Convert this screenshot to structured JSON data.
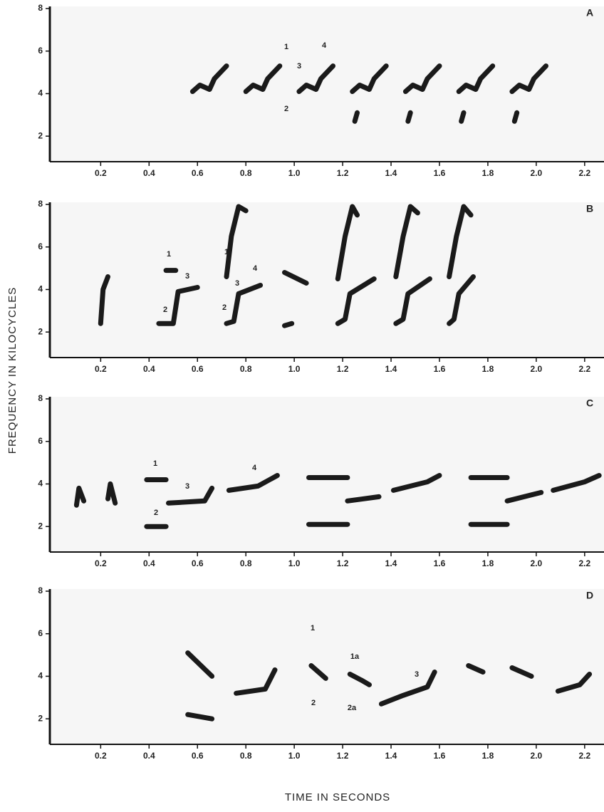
{
  "y_axis_label": "FREQUENCY IN KILOCYCLES",
  "x_axis_label": "TIME IN SECONDS",
  "chart_data": [
    {
      "type": "spectrogram",
      "title": "A",
      "color": "#1a1a1a",
      "xlim": [
        -0.01,
        2.28
      ],
      "ylim": [
        0.8,
        8.1
      ],
      "xticks": [
        0.2,
        0.4,
        0.6,
        0.8,
        {
          "value": 1,
          "label": "1.0"
        },
        1.2,
        1.4,
        1.6,
        1.8,
        {
          "value": 2,
          "label": "2.0"
        },
        2.2
      ],
      "yticks": [
        2,
        4,
        6,
        8
      ],
      "annotations": [
        "1",
        "4",
        "3",
        "2"
      ],
      "x": [
        0.58,
        0.61,
        0.65,
        0.67,
        0.72,
        null,
        0.8,
        0.83,
        0.87,
        0.89,
        0.94,
        null,
        1.02,
        1.05,
        1.09,
        1.11,
        1.16,
        null,
        1.24,
        1.27,
        1.31,
        1.33,
        1.38,
        null,
        1.46,
        1.49,
        1.53,
        1.55,
        1.6,
        null,
        1.68,
        1.71,
        1.75,
        1.77,
        1.82,
        null,
        1.9,
        1.93,
        1.97,
        1.99,
        2.04,
        null,
        1.25,
        1.26,
        null,
        1.47,
        1.48,
        null,
        1.69,
        1.7,
        null,
        1.91,
        1.92
      ],
      "values": [
        4.1,
        4.4,
        4.2,
        4.7,
        5.3,
        null,
        4.1,
        4.4,
        4.2,
        4.7,
        5.3,
        null,
        4.1,
        4.4,
        4.2,
        4.7,
        5.3,
        null,
        4.1,
        4.4,
        4.2,
        4.7,
        5.3,
        null,
        4.1,
        4.4,
        4.2,
        4.7,
        5.3,
        null,
        4.1,
        4.4,
        4.2,
        4.7,
        5.3,
        null,
        4.1,
        4.4,
        4.2,
        4.7,
        5.3,
        null,
        2.7,
        3.1,
        null,
        2.7,
        3.1,
        null,
        2.7,
        3.1,
        null,
        2.7,
        3.1
      ]
    },
    {
      "type": "spectrogram",
      "title": "B",
      "color": "#1a1a1a",
      "xlim": [
        -0.01,
        2.28
      ],
      "ylim": [
        0.8,
        8.1
      ],
      "xticks": [
        0.2,
        0.4,
        0.6,
        0.8,
        {
          "value": 1,
          "label": "1.0"
        },
        1.2,
        1.4,
        1.6,
        1.8,
        {
          "value": 2,
          "label": "2.0"
        },
        2.2
      ],
      "yticks": [
        2,
        4,
        6,
        8
      ],
      "annotations": [
        "1",
        "3",
        "2",
        "1",
        "3",
        "4",
        "2"
      ],
      "x": [
        0.2,
        0.21,
        0.23,
        null,
        0.44,
        0.5,
        0.52,
        0.6,
        null,
        0.47,
        0.51,
        null,
        0.72,
        0.75,
        0.77,
        0.86,
        null,
        0.72,
        0.74,
        0.77,
        0.8,
        null,
        0.96,
        0.99,
        null,
        0.96,
        1.05,
        null,
        1.18,
        1.21,
        1.23,
        1.33,
        null,
        1.18,
        1.21,
        1.24,
        1.26,
        null,
        1.42,
        1.45,
        1.47,
        1.56,
        null,
        1.42,
        1.45,
        1.48,
        1.51,
        null,
        1.64,
        1.66,
        1.68,
        1.74,
        null,
        1.64,
        1.67,
        1.7,
        1.73
      ],
      "values": [
        2.4,
        4.0,
        4.6,
        null,
        2.4,
        2.4,
        3.9,
        4.1,
        null,
        4.9,
        4.9,
        null,
        2.4,
        2.5,
        3.8,
        4.2,
        null,
        4.6,
        6.5,
        7.9,
        7.7,
        null,
        2.3,
        2.4,
        null,
        4.8,
        4.3,
        null,
        2.4,
        2.6,
        3.8,
        4.5,
        null,
        4.5,
        6.5,
        7.9,
        7.5,
        null,
        2.4,
        2.6,
        3.8,
        4.5,
        null,
        4.6,
        6.5,
        7.9,
        7.6,
        null,
        2.4,
        2.6,
        3.8,
        4.6,
        null,
        4.6,
        6.5,
        7.9,
        7.5
      ]
    },
    {
      "type": "spectrogram",
      "title": "C",
      "color": "#1a1a1a",
      "xlim": [
        -0.01,
        2.28
      ],
      "ylim": [
        0.8,
        8.1
      ],
      "xticks": [
        0.2,
        0.4,
        0.6,
        0.8,
        {
          "value": 1,
          "label": "1.0"
        },
        1.2,
        1.4,
        1.6,
        1.8,
        {
          "value": 2,
          "label": "2.0"
        },
        2.2
      ],
      "yticks": [
        2,
        4,
        6,
        8
      ],
      "annotations": [
        "1",
        "2",
        "3",
        "4"
      ],
      "x": [
        0.1,
        0.11,
        0.13,
        null,
        0.23,
        0.24,
        0.26,
        null,
        0.39,
        0.47,
        null,
        0.39,
        0.47,
        null,
        0.48,
        0.63,
        0.66,
        null,
        0.73,
        0.85,
        0.93,
        null,
        1.06,
        1.22,
        null,
        1.06,
        1.22,
        null,
        1.22,
        1.35,
        null,
        1.41,
        1.55,
        1.6,
        null,
        1.73,
        1.88,
        null,
        1.73,
        1.88,
        null,
        1.88,
        2.02,
        null,
        2.07,
        2.2,
        2.26
      ],
      "values": [
        3.0,
        3.8,
        3.2,
        null,
        3.3,
        4.0,
        3.1,
        null,
        4.2,
        4.2,
        null,
        2.0,
        2.0,
        null,
        3.1,
        3.2,
        3.8,
        null,
        3.7,
        3.9,
        4.4,
        null,
        4.3,
        4.3,
        null,
        2.1,
        2.1,
        null,
        3.2,
        3.4,
        null,
        3.7,
        4.1,
        4.4,
        null,
        4.3,
        4.3,
        null,
        2.1,
        2.1,
        null,
        3.2,
        3.6,
        null,
        3.7,
        4.1,
        4.4
      ]
    },
    {
      "type": "spectrogram",
      "title": "D",
      "color": "#1a1a1a",
      "xlim": [
        -0.01,
        2.28
      ],
      "ylim": [
        0.8,
        8.1
      ],
      "xticks": [
        0.2,
        0.4,
        0.6,
        0.8,
        {
          "value": 1,
          "label": "1.0"
        },
        1.2,
        1.4,
        1.6,
        1.8,
        {
          "value": 2,
          "label": "2.0"
        },
        2.2
      ],
      "yticks": [
        2,
        4,
        6,
        8
      ],
      "annotations": [
        "1",
        "1a",
        "2",
        "2a",
        "3"
      ],
      "x": [
        0.56,
        0.66,
        null,
        0.56,
        0.66,
        null,
        0.76,
        0.88,
        0.92,
        null,
        1.07,
        1.13,
        null,
        1.23,
        1.28,
        1.31,
        null,
        1.36,
        1.45,
        1.55,
        1.58,
        null,
        1.72,
        1.78,
        null,
        1.9,
        1.98,
        null,
        2.09,
        2.18,
        2.22
      ],
      "values": [
        5.1,
        4.0,
        null,
        2.2,
        2.0,
        null,
        3.2,
        3.4,
        4.3,
        null,
        4.5,
        3.9,
        null,
        4.1,
        3.8,
        3.6,
        null,
        2.7,
        3.1,
        3.5,
        4.2,
        null,
        4.5,
        4.2,
        null,
        4.4,
        4.0,
        null,
        3.3,
        3.6,
        4.1
      ]
    }
  ]
}
